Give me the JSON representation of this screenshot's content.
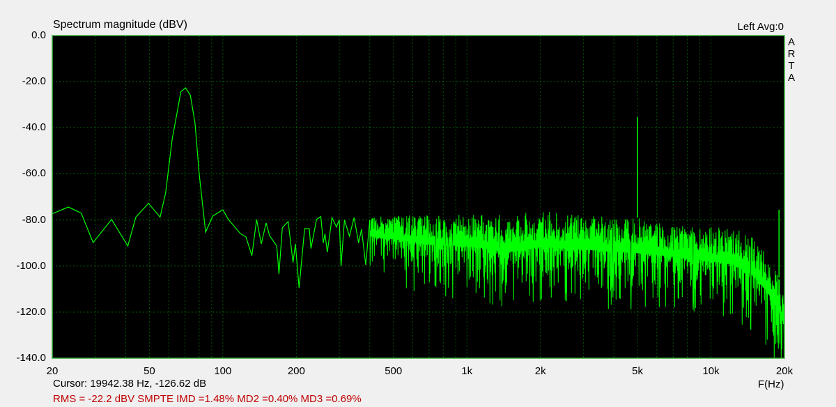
{
  "header": {
    "title": "Spectrum magnitude (dBV)",
    "channel_info": "Left  Avg:0",
    "logo_letters": [
      "A",
      "R",
      "T",
      "A"
    ]
  },
  "footer": {
    "cursor": "Cursor: 19942.38 Hz, -126.62 dB",
    "stats": "RMS =  -22.2 dBV  SMPTE IMD =1.48%  MD2 =0.40%  MD3 =0.69%",
    "x_unit": "F(Hz)"
  },
  "colors": {
    "trace": "#00ff00",
    "grid": "#00a000",
    "plot_bg": "#000000",
    "stats_text": "#c00000",
    "border": "#3cb43c"
  },
  "chart_data": {
    "type": "line",
    "title": "Spectrum magnitude (dBV)",
    "xlabel": "F(Hz)",
    "ylabel": "",
    "x_scale": "log",
    "xlim": [
      20,
      20000
    ],
    "ylim": [
      -140,
      0
    ],
    "grid": true,
    "x_ticks": [
      {
        "v": 20,
        "label": "20"
      },
      {
        "v": 50,
        "label": "50"
      },
      {
        "v": 100,
        "label": "100"
      },
      {
        "v": 200,
        "label": "200"
      },
      {
        "v": 500,
        "label": "500"
      },
      {
        "v": 1000,
        "label": "1k"
      },
      {
        "v": 2000,
        "label": "2k"
      },
      {
        "v": 5000,
        "label": "5k"
      },
      {
        "v": 10000,
        "label": "10k"
      },
      {
        "v": 20000,
        "label": "20k"
      }
    ],
    "y_ticks": [
      {
        "v": 0,
        "label": "0.0"
      },
      {
        "v": -20,
        "label": "-20.0"
      },
      {
        "v": -40,
        "label": "-40.0"
      },
      {
        "v": -60,
        "label": "-60.0"
      },
      {
        "v": -80,
        "label": "-80.0"
      },
      {
        "v": -100,
        "label": "-100.0"
      },
      {
        "v": -120,
        "label": "-120.0"
      },
      {
        "v": -140,
        "label": "-140.0"
      }
    ],
    "trace_points": [
      [
        20,
        -77.3
      ],
      [
        23.3,
        -74.4
      ],
      [
        26.3,
        -77.1
      ],
      [
        29.4,
        -89.8
      ],
      [
        35,
        -79.8
      ],
      [
        40.8,
        -91.3
      ],
      [
        44,
        -78.8
      ],
      [
        49.6,
        -72.8
      ],
      [
        55.3,
        -78.8
      ],
      [
        58.3,
        -68.2
      ],
      [
        62,
        -45
      ],
      [
        67.3,
        -24.4
      ],
      [
        70.3,
        -22.7
      ],
      [
        73.6,
        -25.9
      ],
      [
        76.9,
        -38
      ],
      [
        80,
        -60
      ],
      [
        85,
        -85.3
      ],
      [
        90.9,
        -78.3
      ],
      [
        100,
        -75.6
      ],
      [
        105.4,
        -79.8
      ],
      [
        117.9,
        -85.9
      ],
      [
        124.4,
        -87.4
      ],
      [
        131.5,
        -95.5
      ],
      [
        137.5,
        -79.8
      ],
      [
        143.7,
        -90.4
      ],
      [
        150.4,
        -81.3
      ],
      [
        155.4,
        -86.8
      ],
      [
        166.3,
        -91.3
      ],
      [
        169.8,
        -103.4
      ],
      [
        175.3,
        -83.4
      ],
      [
        185.2,
        -80.7
      ],
      [
        193.9,
        -98.5
      ],
      [
        198.3,
        -90.4
      ],
      [
        205.3,
        -109.5
      ],
      [
        216.3,
        -83.8
      ],
      [
        226,
        -83.8
      ],
      [
        229.6,
        -92.4
      ],
      [
        242,
        -79.8
      ],
      [
        252,
        -78.5
      ],
      [
        258,
        -90
      ],
      [
        262,
        -86
      ],
      [
        268,
        -94
      ],
      [
        280,
        -79
      ],
      [
        292,
        -83
      ],
      [
        300,
        -80
      ],
      [
        305,
        -100
      ],
      [
        315,
        -80
      ],
      [
        330,
        -87
      ],
      [
        345,
        -79
      ],
      [
        360,
        -90
      ],
      [
        370,
        -84
      ],
      [
        385,
        -99.5
      ],
      [
        400,
        -80
      ]
    ],
    "noise_band": [
      [
        400,
        -79,
        -97
      ],
      [
        500,
        -78,
        -101
      ],
      [
        700,
        -78,
        -106
      ],
      [
        1000,
        -77,
        -109
      ],
      [
        1500,
        -78,
        -113
      ],
      [
        2000,
        -76,
        -111
      ],
      [
        3000,
        -78,
        -111
      ],
      [
        5000,
        -79,
        -113
      ],
      [
        7000,
        -82,
        -113
      ],
      [
        10000,
        -83,
        -116
      ],
      [
        13000,
        -84,
        -119
      ],
      [
        15000,
        -88,
        -123
      ],
      [
        17000,
        -95,
        -131
      ],
      [
        19000,
        -105,
        -138
      ],
      [
        20000,
        -114,
        -140
      ]
    ],
    "spikes": [
      {
        "f": 5000,
        "db": -35.4
      },
      {
        "f": 19000,
        "db": -75.6
      }
    ]
  }
}
